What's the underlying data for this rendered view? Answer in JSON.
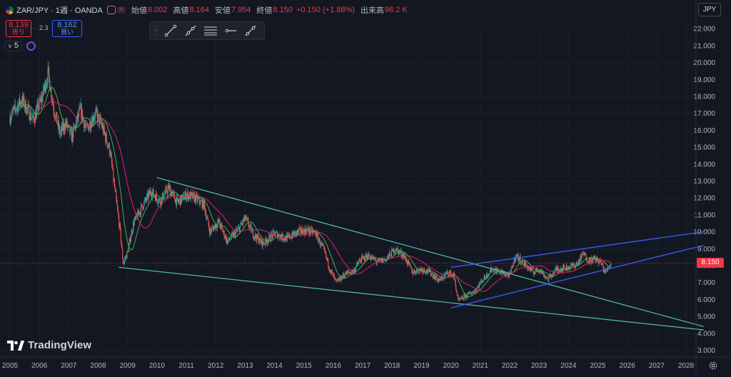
{
  "legend": {
    "symbol": "ZAR/JPY · 1週 · OANDA",
    "open_label": "始値",
    "open": "8.002",
    "high_label": "高値",
    "high": "8.164",
    "low_label": "安値",
    "low": "7.954",
    "close_label": "終値",
    "close": "8.150",
    "change": "+0.150 (+1.88%)",
    "volume_label": "出来高",
    "volume": "98.2 K"
  },
  "trade": {
    "sell_price": "8.139",
    "sell_label": "売り",
    "spread": "2.3",
    "buy_price": "8.162",
    "buy_label": "買い"
  },
  "indicators": {
    "count": "5"
  },
  "toolbar": {
    "tools": [
      "trend-line-icon",
      "ray-icon",
      "parallel-channel-icon",
      "horizontal-ray-icon",
      "extended-line-icon"
    ]
  },
  "currency": "JPY",
  "last_price": "8.150",
  "brand": "TradingView",
  "colors": {
    "background": "#131722",
    "up": "#26a69a",
    "down": "#ef5350",
    "ma_fast": "#4caf50",
    "ma_slow": "#e91e63",
    "green_lines": "#4fb69c",
    "blue_lines": "#3d5afe",
    "price_tag": "#f23645"
  },
  "chart_data": {
    "type": "candlestick",
    "interval": "1週",
    "y_ticks": [
      "3.000",
      "4.000",
      "5.000",
      "6.000",
      "7.000",
      "8.000",
      "9.000",
      "10.000",
      "11.000",
      "12.000",
      "13.000",
      "14.000",
      "15.000",
      "16.000",
      "17.000",
      "18.000",
      "19.000",
      "20.000",
      "21.000",
      "22.000"
    ],
    "x_ticks": [
      "2005",
      "2006",
      "2007",
      "2008",
      "2009",
      "2010",
      "2011",
      "2012",
      "2013",
      "2014",
      "2015",
      "2016",
      "2017",
      "2018",
      "2019",
      "2020",
      "2021",
      "2022",
      "2023",
      "2024",
      "2025",
      "2026",
      "2027",
      "2028"
    ],
    "ylim": [
      2.6,
      22.6
    ],
    "xlim": [
      2005.0,
      2028.6
    ],
    "price_path": [
      [
        2005.0,
        16.8
      ],
      [
        2005.4,
        17.8
      ],
      [
        2005.8,
        16.6
      ],
      [
        2006.1,
        18.0
      ],
      [
        2006.3,
        19.4
      ],
      [
        2006.5,
        17.2
      ],
      [
        2006.7,
        15.8
      ],
      [
        2006.9,
        16.4
      ],
      [
        2007.1,
        15.6
      ],
      [
        2007.4,
        17.2
      ],
      [
        2007.6,
        16.0
      ],
      [
        2007.9,
        17.0
      ],
      [
        2008.1,
        16.4
      ],
      [
        2008.4,
        14.8
      ],
      [
        2008.6,
        12.0
      ],
      [
        2008.75,
        10.0
      ],
      [
        2008.85,
        8.1
      ],
      [
        2009.0,
        8.8
      ],
      [
        2009.2,
        10.5
      ],
      [
        2009.5,
        11.5
      ],
      [
        2009.8,
        12.4
      ],
      [
        2010.1,
        11.8
      ],
      [
        2010.4,
        12.6
      ],
      [
        2010.7,
        11.7
      ],
      [
        2011.0,
        12.2
      ],
      [
        2011.3,
        12.0
      ],
      [
        2011.6,
        11.6
      ],
      [
        2011.8,
        10.0
      ],
      [
        2012.1,
        10.6
      ],
      [
        2012.4,
        9.4
      ],
      [
        2012.8,
        10.2
      ],
      [
        2013.0,
        10.8
      ],
      [
        2013.3,
        9.8
      ],
      [
        2013.6,
        9.3
      ],
      [
        2014.0,
        9.9
      ],
      [
        2014.4,
        9.6
      ],
      [
        2014.8,
        10.0
      ],
      [
        2015.1,
        10.1
      ],
      [
        2015.4,
        9.9
      ],
      [
        2015.7,
        8.8
      ],
      [
        2015.9,
        7.7
      ],
      [
        2016.1,
        7.0
      ],
      [
        2016.4,
        7.5
      ],
      [
        2016.7,
        7.7
      ],
      [
        2016.9,
        8.3
      ],
      [
        2017.2,
        8.6
      ],
      [
        2017.5,
        8.2
      ],
      [
        2017.8,
        8.4
      ],
      [
        2018.1,
        9.0
      ],
      [
        2018.4,
        8.6
      ],
      [
        2018.7,
        7.6
      ],
      [
        2019.0,
        7.8
      ],
      [
        2019.3,
        7.6
      ],
      [
        2019.6,
        7.1
      ],
      [
        2019.9,
        7.6
      ],
      [
        2020.1,
        7.4
      ],
      [
        2020.25,
        5.9
      ],
      [
        2020.5,
        6.2
      ],
      [
        2020.8,
        6.5
      ],
      [
        2021.1,
        7.2
      ],
      [
        2021.4,
        7.8
      ],
      [
        2021.7,
        7.6
      ],
      [
        2022.0,
        7.4
      ],
      [
        2022.2,
        8.6
      ],
      [
        2022.5,
        8.1
      ],
      [
        2022.8,
        7.6
      ],
      [
        2023.0,
        7.8
      ],
      [
        2023.3,
        7.2
      ],
      [
        2023.6,
        7.8
      ],
      [
        2024.0,
        7.9
      ],
      [
        2024.3,
        8.1
      ],
      [
        2024.5,
        8.7
      ],
      [
        2024.7,
        8.3
      ],
      [
        2024.9,
        8.4
      ],
      [
        2025.1,
        8.2
      ],
      [
        2025.25,
        7.6
      ],
      [
        2025.45,
        8.15
      ]
    ],
    "drawings": [
      {
        "name": "upper-descending-line",
        "color": "green",
        "from": [
          2010.0,
          13.2
        ],
        "to": [
          2028.6,
          4.4
        ]
      },
      {
        "name": "lower-descending-line",
        "color": "green",
        "from": [
          2008.7,
          7.9
        ],
        "to": [
          2028.6,
          4.2
        ]
      },
      {
        "name": "upper-channel-line",
        "color": "blue",
        "from": [
          2020.0,
          7.9
        ],
        "to": [
          2028.6,
          10.0
        ]
      },
      {
        "name": "lower-channel-line",
        "color": "blue",
        "from": [
          2020.0,
          5.5
        ],
        "to": [
          2028.6,
          9.2
        ]
      }
    ],
    "last_price": 8.15
  }
}
